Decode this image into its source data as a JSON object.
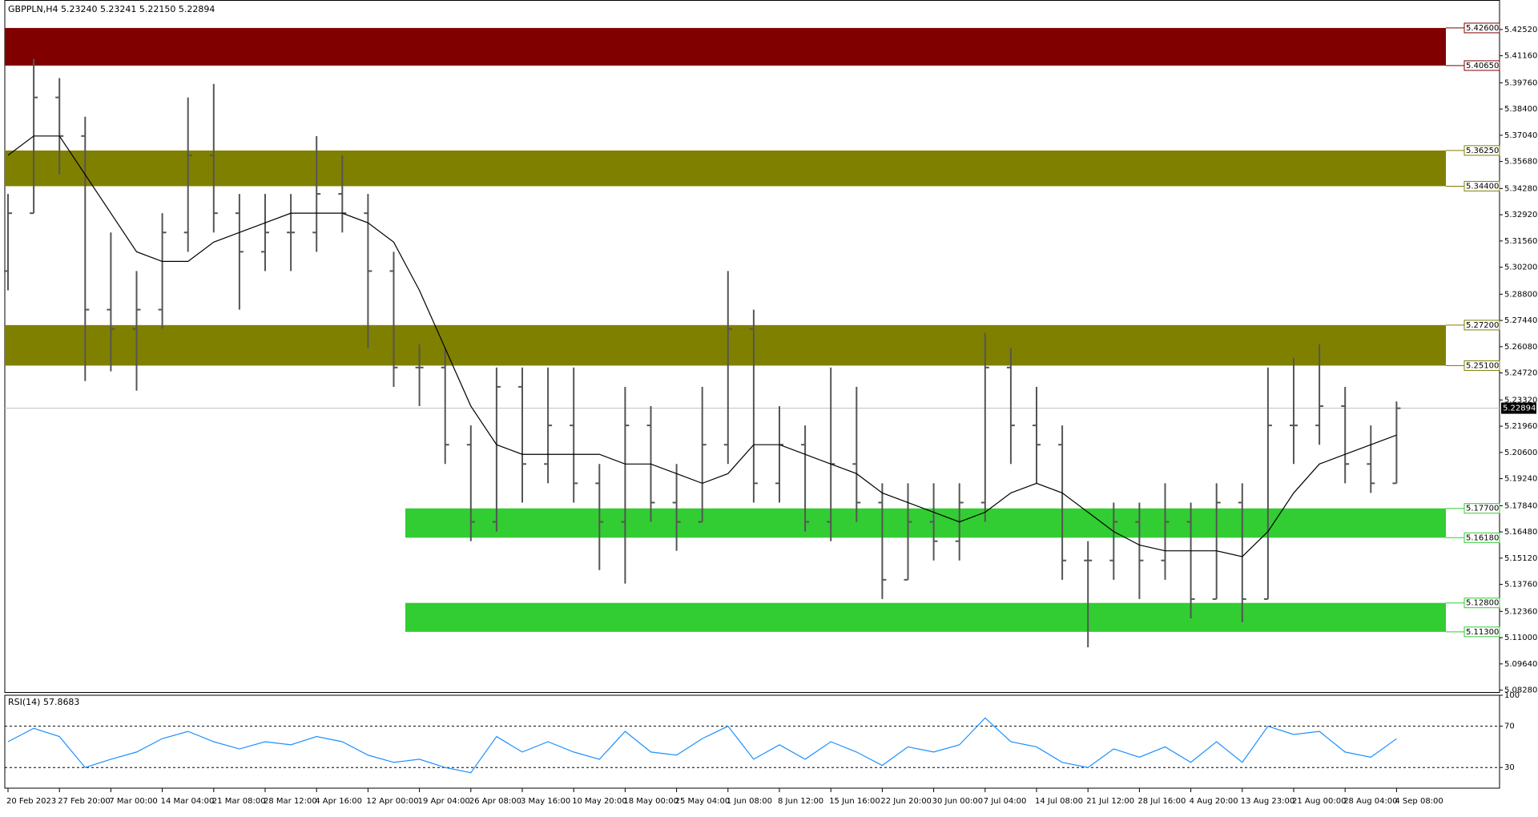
{
  "chart_data": {
    "type": "ohlc",
    "title": "GBPPLN,H4  5.23240 5.23241 5.22150 5.22894",
    "ylim": [
      5.0818,
      5.4405
    ],
    "yticks": [
      {
        "value": 5.4252,
        "label": "5.42520"
      },
      {
        "value": 5.4116,
        "label": "5.41160"
      },
      {
        "value": 5.3976,
        "label": "5.39760"
      },
      {
        "value": 5.384,
        "label": "5.38400"
      },
      {
        "value": 5.3704,
        "label": "5.37040"
      },
      {
        "value": 5.3568,
        "label": "5.35680"
      },
      {
        "value": 5.3428,
        "label": "5.34280"
      },
      {
        "value": 5.3292,
        "label": "5.32920"
      },
      {
        "value": 5.3156,
        "label": "5.31560"
      },
      {
        "value": 5.302,
        "label": "5.30200"
      },
      {
        "value": 5.288,
        "label": "5.28800"
      },
      {
        "value": 5.2744,
        "label": "5.27440"
      },
      {
        "value": 5.2608,
        "label": "5.26080"
      },
      {
        "value": 5.2472,
        "label": "5.24720"
      },
      {
        "value": 5.2332,
        "label": "5.23320"
      },
      {
        "value": 5.2196,
        "label": "5.21960"
      },
      {
        "value": 5.206,
        "label": "5.20600"
      },
      {
        "value": 5.1924,
        "label": "5.19240"
      },
      {
        "value": 5.1784,
        "label": "5.17840"
      },
      {
        "value": 5.1648,
        "label": "5.16480"
      },
      {
        "value": 5.1512,
        "label": "5.15120"
      },
      {
        "value": 5.1376,
        "label": "5.13760"
      },
      {
        "value": 5.1236,
        "label": "5.12360"
      },
      {
        "value": 5.11,
        "label": "5.11000"
      },
      {
        "value": 5.0964,
        "label": "5.09640"
      },
      {
        "value": 5.0828,
        "label": "5.08280"
      }
    ],
    "xlabels": [
      "20 Feb 2023",
      "27 Feb 20:00",
      "7 Mar 00:00",
      "14 Mar 04:00",
      "21 Mar 08:00",
      "28 Mar 12:00",
      "4 Apr 16:00",
      "12 Apr 00:00",
      "19 Apr 04:00",
      "26 Apr 08:00",
      "3 May 16:00",
      "10 May 20:00",
      "18 May 00:00",
      "25 May 04:00",
      "1 Jun 08:00",
      "8 Jun 12:00",
      "15 Jun 16:00",
      "22 Jun 20:00",
      "30 Jun 00:00",
      "7 Jul 04:00",
      "14 Jul 08:00",
      "21 Jul 12:00",
      "28 Jul 16:00",
      "4 Aug 20:00",
      "13 Aug 23:00",
      "21 Aug 00:00",
      "28 Aug 04:00",
      "4 Sep 08:00"
    ],
    "color": "#555555",
    "ohlc": [
      [
        5.3,
        5.34,
        5.29,
        5.33
      ],
      [
        5.33,
        5.41,
        5.33,
        5.39
      ],
      [
        5.39,
        5.4,
        5.35,
        5.37
      ],
      [
        5.37,
        5.38,
        5.243,
        5.28
      ],
      [
        5.28,
        5.32,
        5.248,
        5.27
      ],
      [
        5.27,
        5.3,
        5.238,
        5.28
      ],
      [
        5.28,
        5.33,
        5.27,
        5.32
      ],
      [
        5.32,
        5.39,
        5.31,
        5.36
      ],
      [
        5.36,
        5.397,
        5.32,
        5.33
      ],
      [
        5.33,
        5.34,
        5.28,
        5.31
      ],
      [
        5.31,
        5.34,
        5.3,
        5.32
      ],
      [
        5.32,
        5.34,
        5.3,
        5.32
      ],
      [
        5.32,
        5.37,
        5.31,
        5.34
      ],
      [
        5.34,
        5.36,
        5.32,
        5.33
      ],
      [
        5.33,
        5.34,
        5.26,
        5.3
      ],
      [
        5.3,
        5.31,
        5.24,
        5.25
      ],
      [
        5.25,
        5.262,
        5.23,
        5.25
      ],
      [
        5.25,
        5.26,
        5.2,
        5.21
      ],
      [
        5.21,
        5.22,
        5.16,
        5.17
      ],
      [
        5.17,
        5.25,
        5.165,
        5.24
      ],
      [
        5.24,
        5.25,
        5.18,
        5.2
      ],
      [
        5.2,
        5.25,
        5.19,
        5.22
      ],
      [
        5.22,
        5.25,
        5.18,
        5.19
      ],
      [
        5.19,
        5.2,
        5.145,
        5.17
      ],
      [
        5.17,
        5.24,
        5.138,
        5.22
      ],
      [
        5.22,
        5.23,
        5.17,
        5.18
      ],
      [
        5.18,
        5.2,
        5.155,
        5.17
      ],
      [
        5.17,
        5.24,
        5.17,
        5.21
      ],
      [
        5.21,
        5.3,
        5.2,
        5.27
      ],
      [
        5.27,
        5.28,
        5.18,
        5.19
      ],
      [
        5.19,
        5.23,
        5.18,
        5.21
      ],
      [
        5.21,
        5.22,
        5.165,
        5.17
      ],
      [
        5.17,
        5.25,
        5.16,
        5.2
      ],
      [
        5.2,
        5.24,
        5.17,
        5.18
      ],
      [
        5.18,
        5.19,
        5.13,
        5.14
      ],
      [
        5.14,
        5.19,
        5.14,
        5.17
      ],
      [
        5.17,
        5.19,
        5.15,
        5.16
      ],
      [
        5.16,
        5.19,
        5.15,
        5.18
      ],
      [
        5.18,
        5.268,
        5.17,
        5.25
      ],
      [
        5.25,
        5.26,
        5.2,
        5.22
      ],
      [
        5.22,
        5.24,
        5.19,
        5.21
      ],
      [
        5.21,
        5.22,
        5.14,
        5.15
      ],
      [
        5.15,
        5.16,
        5.105,
        5.15
      ],
      [
        5.15,
        5.18,
        5.14,
        5.17
      ],
      [
        5.17,
        5.18,
        5.13,
        5.15
      ],
      [
        5.15,
        5.19,
        5.14,
        5.17
      ],
      [
        5.17,
        5.18,
        5.12,
        5.13
      ],
      [
        5.13,
        5.19,
        5.13,
        5.18
      ],
      [
        5.18,
        5.19,
        5.118,
        5.13
      ],
      [
        5.13,
        5.25,
        5.13,
        5.22
      ],
      [
        5.22,
        5.255,
        5.2,
        5.22
      ],
      [
        5.22,
        5.262,
        5.21,
        5.23
      ],
      [
        5.23,
        5.24,
        5.19,
        5.2
      ],
      [
        5.2,
        5.22,
        5.185,
        5.19
      ],
      [
        5.19,
        5.2324,
        5.19,
        5.2289
      ]
    ],
    "ma": {
      "color": "#000000",
      "values": [
        5.36,
        5.37,
        5.37,
        5.35,
        5.33,
        5.31,
        5.305,
        5.305,
        5.315,
        5.32,
        5.325,
        5.33,
        5.33,
        5.33,
        5.325,
        5.315,
        5.29,
        5.26,
        5.23,
        5.21,
        5.205,
        5.205,
        5.205,
        5.205,
        5.2,
        5.2,
        5.195,
        5.19,
        5.195,
        5.21,
        5.21,
        5.205,
        5.2,
        5.195,
        5.185,
        5.18,
        5.175,
        5.17,
        5.175,
        5.185,
        5.19,
        5.185,
        5.175,
        5.165,
        5.158,
        5.155,
        5.155,
        5.155,
        5.152,
        5.165,
        5.185,
        5.2,
        5.205,
        5.21,
        5.215
      ]
    },
    "zones": [
      {
        "top": {
          "value": 5.426,
          "label": "5.42600"
        },
        "bottom": {
          "value": 5.4065,
          "label": "5.40650"
        },
        "color": "#800000"
      },
      {
        "top": {
          "value": 5.3625,
          "label": "5.36250"
        },
        "bottom": {
          "value": 5.344,
          "label": "5.34400"
        },
        "color": "#808000"
      },
      {
        "top": {
          "value": 5.272,
          "label": "5.27200"
        },
        "bottom": {
          "value": 5.251,
          "label": "5.25100"
        },
        "color": "#808000"
      },
      {
        "top": {
          "value": 5.177,
          "label": "5.17700"
        },
        "bottom": {
          "value": 5.1618,
          "label": "5.16180"
        },
        "color": "#32cd32"
      },
      {
        "top": {
          "value": 5.128,
          "label": "5.12800"
        },
        "bottom": {
          "value": 5.113,
          "label": "5.11300"
        },
        "color": "#32cd32"
      }
    ],
    "last_price": 5.22894,
    "rsi": {
      "label": "RSI(14) 57.8683",
      "color": "#1e90ff",
      "ylim": [
        10,
        100
      ],
      "yticks": [
        100,
        70,
        30
      ],
      "levels": [
        70,
        30
      ],
      "values": [
        55,
        68,
        60,
        30,
        38,
        45,
        58,
        65,
        55,
        48,
        55,
        52,
        60,
        55,
        42,
        35,
        38,
        30,
        25,
        60,
        45,
        55,
        45,
        38,
        65,
        45,
        42,
        58,
        70,
        38,
        52,
        38,
        55,
        45,
        32,
        50,
        45,
        52,
        78,
        55,
        50,
        35,
        30,
        48,
        40,
        50,
        35,
        55,
        35,
        70,
        62,
        65,
        45,
        40,
        57.87
      ]
    }
  }
}
